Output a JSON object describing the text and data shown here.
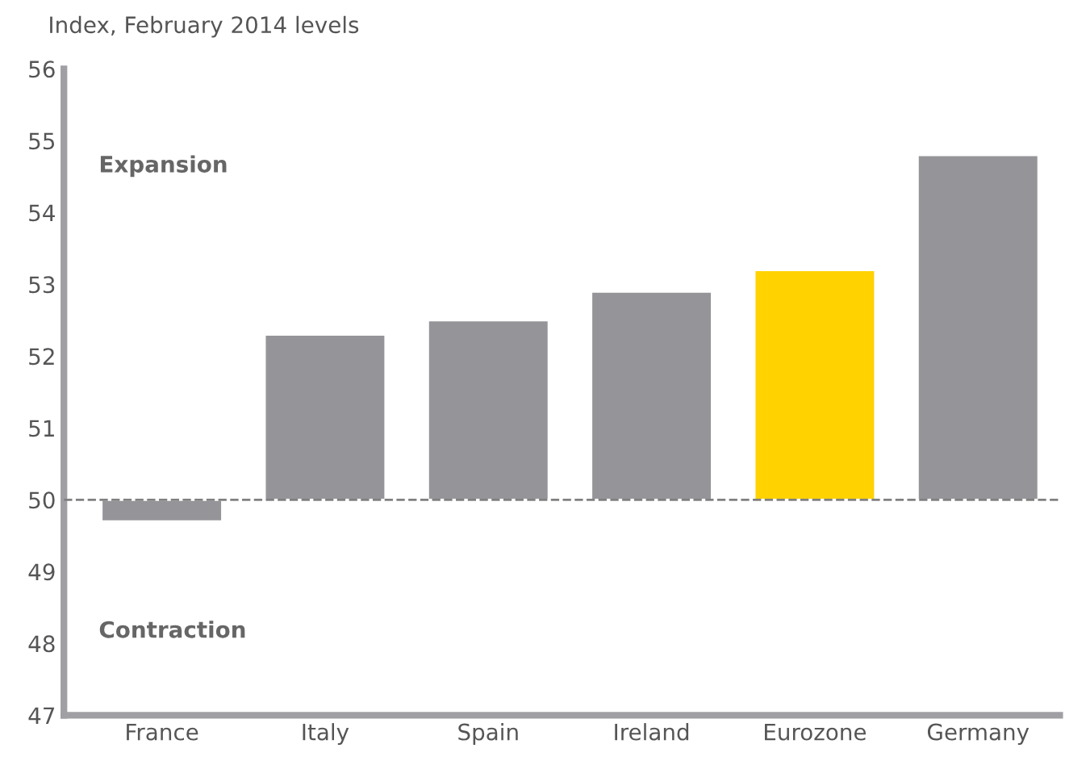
{
  "chart_data": {
    "type": "bar",
    "ylabel": "Index, February 2014 levels",
    "categories": [
      "France",
      "Italy",
      "Spain",
      "Ireland",
      "Eurozone",
      "Germany"
    ],
    "base": [
      50,
      50,
      50,
      50,
      50,
      50
    ],
    "values": [
      -0.3,
      2.3,
      2.5,
      2.9,
      3.2,
      4.8
    ],
    "colors": [
      "#959599",
      "#959599",
      "#959599",
      "#959599",
      "#ffd200",
      "#959599"
    ],
    "ylim": [
      47,
      56
    ],
    "yticks": [
      47,
      48,
      49,
      50,
      51,
      52,
      53,
      54,
      55,
      56
    ],
    "ref_lines": [
      {
        "axis": "y",
        "value": 50,
        "color": "#808080",
        "line_style": "dashed"
      }
    ],
    "annotations": [
      "Expansion",
      "Contraction"
    ],
    "grid": false,
    "legend": false
  }
}
